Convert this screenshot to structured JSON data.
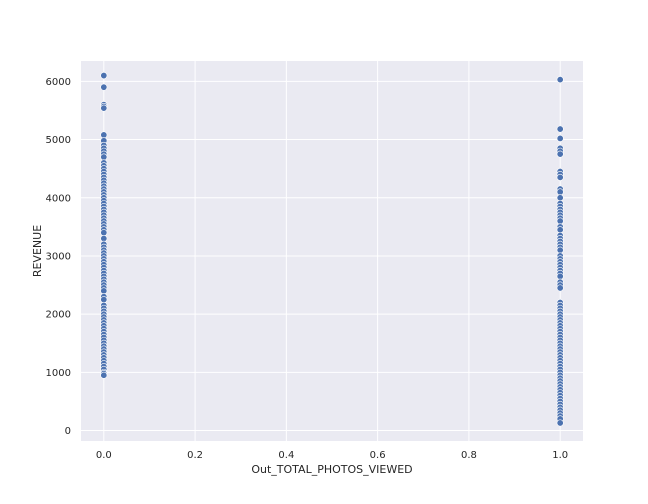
{
  "chart_data": {
    "type": "scatter",
    "title": "",
    "xlabel": "Out_TOTAL_PHOTOS_VIEWED",
    "ylabel": "REVENUE",
    "xlim": [
      -0.05,
      1.05
    ],
    "ylim": [
      -180,
      6350
    ],
    "xticks": [
      0.0,
      0.2,
      0.4,
      0.6,
      0.8,
      1.0
    ],
    "xtick_labels": [
      "0.0",
      "0.2",
      "0.4",
      "0.6",
      "0.8",
      "1.0"
    ],
    "yticks": [
      0,
      1000,
      2000,
      3000,
      4000,
      5000,
      6000
    ],
    "ytick_labels": [
      "0",
      "1000",
      "2000",
      "3000",
      "4000",
      "5000",
      "6000"
    ],
    "grid": true,
    "background": "#eaeaf2",
    "grid_color": "#ffffff",
    "marker_color": "#4c72b0",
    "series": [
      {
        "x": 0,
        "y": [
          6100,
          5900,
          5600,
          5570,
          5540,
          5080,
          4980,
          4900,
          4850,
          4800,
          4750,
          4700,
          4600,
          4550,
          4500,
          4450,
          4400,
          4350,
          4300,
          4250,
          4200,
          4150,
          4100,
          4050,
          4000,
          3950,
          3900,
          3850,
          3800,
          3750,
          3700,
          3650,
          3600,
          3550,
          3500,
          3450,
          3400,
          3300,
          3200,
          3150,
          3100,
          3050,
          3000,
          2950,
          2900,
          2850,
          2800,
          2750,
          2700,
          2650,
          2600,
          2550,
          2500,
          2450,
          2400,
          2300,
          2250,
          2150,
          2100,
          2050,
          2000,
          1950,
          1900,
          1850,
          1800,
          1750,
          1700,
          1650,
          1600,
          1550,
          1500,
          1450,
          1400,
          1350,
          1300,
          1250,
          1200,
          1150,
          1100,
          1050,
          1000,
          980,
          950
        ]
      },
      {
        "x": 1,
        "y": [
          6030,
          5180,
          5020,
          4850,
          4800,
          4750,
          4450,
          4400,
          4350,
          4150,
          4100,
          4000,
          3900,
          3850,
          3800,
          3750,
          3700,
          3650,
          3600,
          3500,
          3450,
          3350,
          3300,
          3250,
          3200,
          3150,
          3100,
          3000,
          2950,
          2900,
          2850,
          2800,
          2750,
          2700,
          2650,
          2550,
          2500,
          2450,
          2200,
          2150,
          2100,
          2050,
          2000,
          1950,
          1900,
          1850,
          1800,
          1750,
          1700,
          1650,
          1600,
          1550,
          1500,
          1450,
          1400,
          1350,
          1300,
          1250,
          1200,
          1150,
          1100,
          1050,
          1000,
          950,
          900,
          850,
          800,
          750,
          700,
          650,
          600,
          550,
          500,
          450,
          400,
          350,
          300,
          250,
          200,
          130
        ]
      }
    ]
  }
}
